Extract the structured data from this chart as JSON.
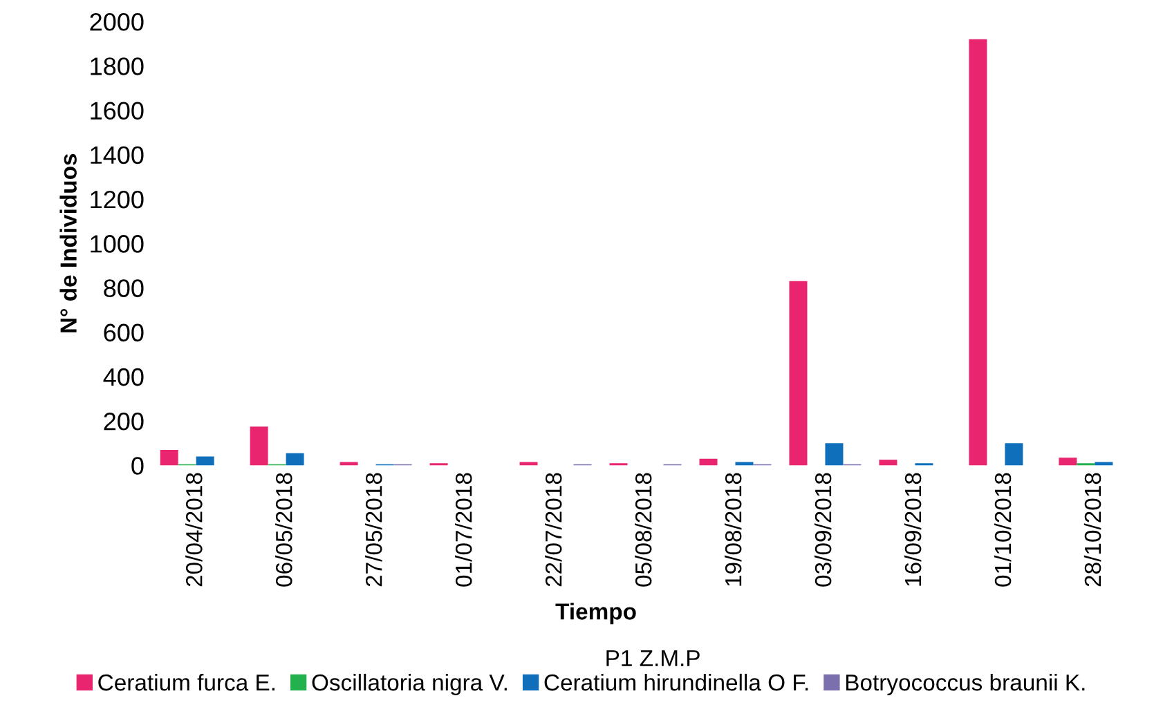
{
  "chart_data": {
    "type": "bar",
    "xlabel": "Tiempo",
    "annotations": [
      "P1 Z.M.P"
    ],
    "ylabel": "N° de Individuos",
    "categories": [
      "20/04/2018",
      "06/05/2018",
      "27/05/2018",
      "01/07/2018",
      "22/07/2018",
      "05/08/2018",
      "19/08/2018",
      "03/09/2018",
      "16/09/2018",
      "01/10/2018",
      "28/10/2018"
    ],
    "series": [
      {
        "name": "Ceratium furca E.",
        "color": "#e8256e",
        "values": [
          70,
          175,
          15,
          10,
          15,
          10,
          30,
          830,
          25,
          1920,
          35
        ]
      },
      {
        "name": "Oscillatoria nigra V.",
        "color": "#23b14d",
        "values": [
          5,
          5,
          0,
          0,
          0,
          0,
          0,
          0,
          0,
          0,
          10
        ]
      },
      {
        "name": "Ceratium hirundinella O F.",
        "color": "#0f6fba",
        "values": [
          40,
          55,
          5,
          0,
          0,
          0,
          15,
          100,
          10,
          100,
          15
        ]
      },
      {
        "name": "Botryococcus braunii K.",
        "color": "#7c6fae",
        "values": [
          0,
          0,
          5,
          0,
          5,
          5,
          5,
          5,
          0,
          0,
          0
        ]
      }
    ],
    "ylim": [
      0,
      2000
    ],
    "yticks": [
      0,
      200,
      400,
      600,
      800,
      1000,
      1200,
      1400,
      1600,
      1800,
      2000
    ],
    "grid": false,
    "legend": "bottom"
  }
}
